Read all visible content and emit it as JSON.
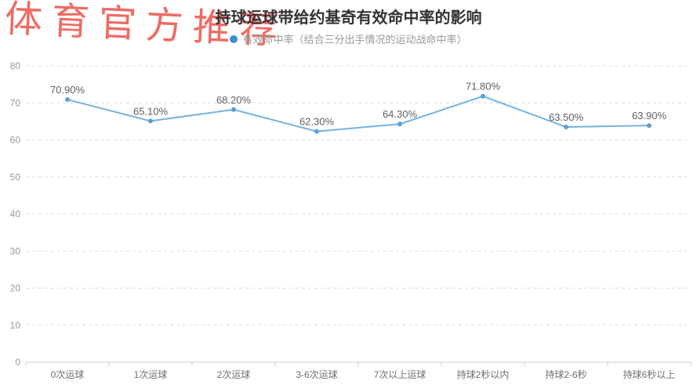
{
  "watermark": {
    "text": "体育官方推荐"
  },
  "chart_data": {
    "type": "line",
    "title": "持球运球带给约基奇有效命中率的影响",
    "legend": {
      "position": "top",
      "label": "有效命中率（结合三分出手情况的运动战命中率）"
    },
    "categories": [
      "0次运球",
      "1次运球",
      "2次运球",
      "3-6次运球",
      "7次以上运球",
      "持球2秒以内",
      "持球2-6秒",
      "持球6秒以上"
    ],
    "series": [
      {
        "name": "有效命中率",
        "values": [
          70.9,
          65.1,
          68.2,
          62.3,
          64.3,
          71.8,
          63.5,
          63.9
        ],
        "point_labels": [
          "70.90%",
          "65.10%",
          "68.20%",
          "62.30%",
          "64.30%",
          "71.80%",
          "63.50%",
          "63.90%"
        ]
      }
    ],
    "xlabel": "",
    "ylabel": "",
    "ylim": [
      0,
      80
    ],
    "yticks": [
      0,
      10,
      20,
      30,
      40,
      50,
      60,
      70,
      80
    ],
    "grid": "horizontal-dashed"
  },
  "colors": {
    "line": "#74b3e1",
    "marker": "#5b9fd4",
    "legend_dot": "#3f8fd0",
    "point_label": "#5e5e5e",
    "y_axis_label": "#999999",
    "x_axis_label": "#6e6e6e",
    "grid_line": "#dddddd",
    "axis_line": "#cccccc",
    "title": "#333333",
    "legend_text": "#999999",
    "watermark": "#ee6b64"
  }
}
